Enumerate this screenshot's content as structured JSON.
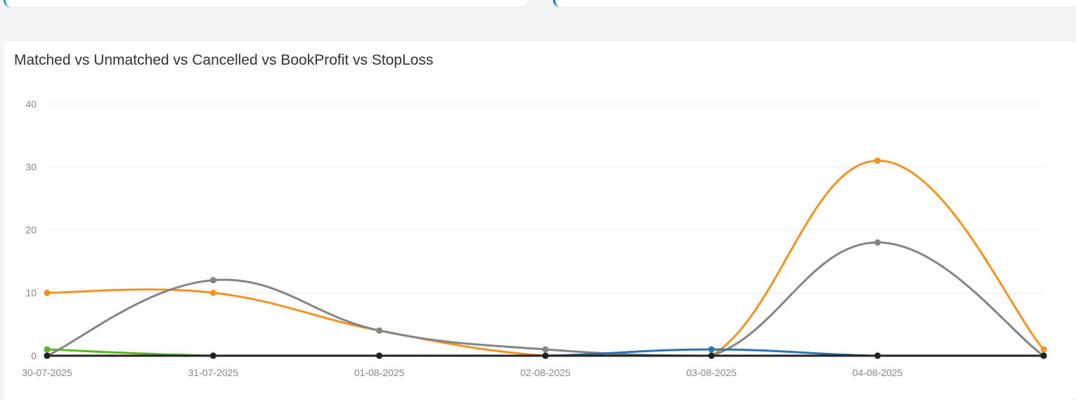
{
  "chart_data": {
    "type": "line",
    "title": "Matched vs Unmatched vs Cancelled vs BookProfit vs StopLoss",
    "categories": [
      "30-07-2025",
      "31-07-2025",
      "01-08-2025",
      "02-08-2025",
      "03-08-2025",
      "04-08-2025",
      ""
    ],
    "ylim": [
      0,
      40
    ],
    "yticks": [
      0,
      10,
      20,
      30,
      40
    ],
    "grid": true,
    "series": [
      {
        "key": "green",
        "color": "#57b81f",
        "values": [
          1,
          0,
          0,
          0,
          0,
          0,
          0
        ]
      },
      {
        "key": "orange",
        "color": "#f39322",
        "values": [
          10,
          10,
          4,
          0,
          0,
          31,
          1
        ]
      },
      {
        "key": "gray",
        "color": "#848484",
        "values": [
          0,
          12,
          4,
          1,
          0,
          18,
          0
        ]
      },
      {
        "key": "blue",
        "color": "#2a75b3",
        "values": [
          0,
          0,
          0,
          0,
          1,
          0,
          0
        ]
      },
      {
        "key": "black",
        "color": "#222222",
        "values": [
          0,
          0,
          0,
          0,
          0,
          0,
          0
        ]
      }
    ]
  }
}
